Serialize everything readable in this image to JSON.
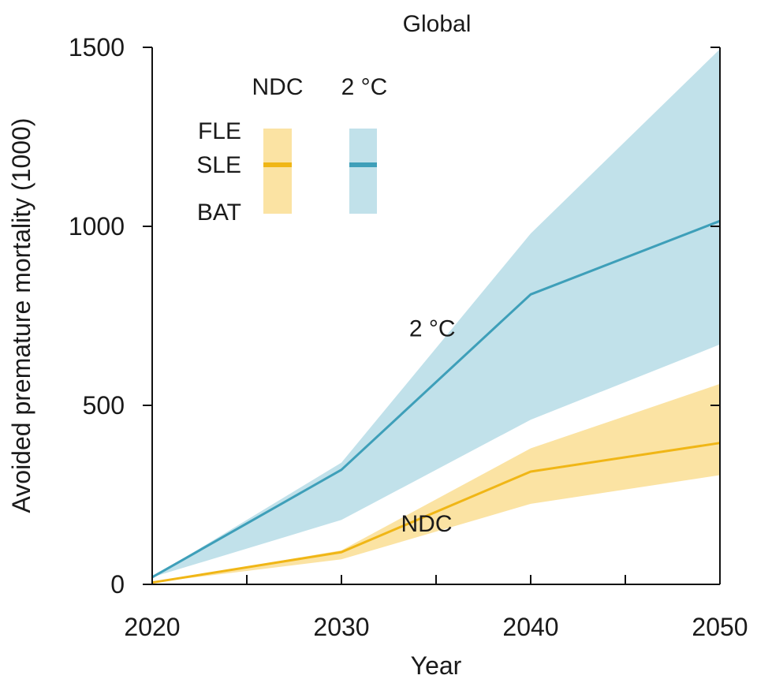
{
  "chart_data": {
    "type": "area",
    "title": "Global",
    "xlabel": "Year",
    "ylabel": "Avoided premature mortality (1000)",
    "xlim": [
      2020,
      2050
    ],
    "ylim": [
      0,
      1500
    ],
    "x_ticks": [
      2020,
      2030,
      2040,
      2050
    ],
    "y_ticks": [
      0,
      500,
      1000,
      1500
    ],
    "x": [
      2020,
      2030,
      2040,
      2050
    ],
    "series": [
      {
        "name": "NDC",
        "color": "#f0b616",
        "band_color": "#fbe3a3",
        "values": [
          5,
          90,
          315,
          395
        ],
        "upper": [
          5,
          95,
          380,
          560
        ],
        "lower": [
          5,
          70,
          225,
          305
        ]
      },
      {
        "name": "2 °C",
        "color": "#3e9fb9",
        "band_color": "#c1e1ea",
        "values": [
          20,
          320,
          810,
          1015
        ],
        "upper": [
          20,
          340,
          980,
          1495
        ],
        "lower": [
          20,
          180,
          460,
          670
        ]
      }
    ],
    "annotations": [
      {
        "text": "2 °C",
        "x": 2034.8,
        "y": 715
      },
      {
        "text": "NDC",
        "x": 2034.5,
        "y": 170
      }
    ],
    "legend": {
      "placement": "top-left",
      "columns": [
        "NDC",
        "2 °C"
      ],
      "rows": [
        "FLE",
        "SLE",
        "BAT"
      ]
    }
  }
}
